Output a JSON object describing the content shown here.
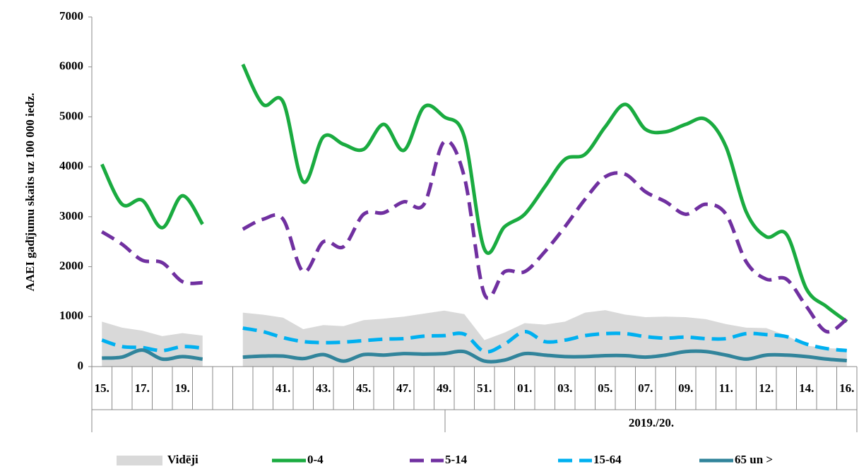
{
  "chart_data": {
    "type": "line",
    "y_label": "AAEI gadījumu skaits uz 100 000 iedz.",
    "categories": [
      "15.",
      null,
      "17.",
      null,
      "19.",
      null,
      null,
      null,
      null,
      "41.",
      null,
      "43.",
      null,
      "45.",
      null,
      "47.",
      null,
      "49.",
      null,
      "51.",
      null,
      "01.",
      null,
      "03.",
      null,
      "05.",
      null,
      "07.",
      null,
      "09.",
      null,
      "11.",
      null,
      "12.",
      null,
      "14.",
      null,
      "16."
    ],
    "x_group_label": "2019./20.",
    "ylim": [
      0,
      7000
    ],
    "yticks": [
      0,
      1000,
      2000,
      3000,
      4000,
      5000,
      6000,
      7000
    ],
    "series": [
      {
        "name": "Vidēji",
        "color": "#d9d9d9",
        "style": "area",
        "values": [
          900,
          780,
          720,
          610,
          670,
          620,
          null,
          1080,
          1040,
          980,
          750,
          830,
          810,
          930,
          960,
          1000,
          1060,
          1120,
          1050,
          530,
          680,
          870,
          840,
          900,
          1080,
          1130,
          1040,
          990,
          1000,
          990,
          950,
          850,
          780,
          770,
          620,
          420,
          370,
          350
        ]
      },
      {
        "name": "0-4",
        "color": "#1aab40",
        "style": "solid",
        "values": [
          4050,
          3250,
          3330,
          2780,
          3420,
          2850,
          null,
          6050,
          5250,
          5300,
          3700,
          4600,
          4450,
          4350,
          4850,
          4330,
          5200,
          5000,
          4600,
          2350,
          2800,
          3050,
          3600,
          4150,
          4250,
          4800,
          5250,
          4750,
          4700,
          4850,
          4950,
          4400,
          3100,
          2600,
          2650,
          1550,
          1200,
          900
        ]
      },
      {
        "name": "5-14",
        "color": "#7030a0",
        "style": "dashed",
        "values": [
          2700,
          2450,
          2130,
          2080,
          1700,
          1680,
          null,
          2750,
          2950,
          2950,
          1900,
          2500,
          2400,
          3050,
          3080,
          3300,
          3250,
          4500,
          3800,
          1450,
          1900,
          1900,
          2300,
          2800,
          3350,
          3800,
          3850,
          3500,
          3300,
          3050,
          3250,
          3050,
          2100,
          1750,
          1750,
          1200,
          700,
          950
        ]
      },
      {
        "name": "15-64",
        "color": "#00b0f0",
        "style": "dashed",
        "values": [
          530,
          400,
          380,
          320,
          400,
          370,
          null,
          770,
          700,
          580,
          500,
          480,
          490,
          520,
          550,
          560,
          610,
          620,
          650,
          300,
          450,
          700,
          500,
          530,
          620,
          660,
          660,
          600,
          570,
          590,
          560,
          560,
          660,
          640,
          600,
          450,
          360,
          320
        ]
      },
      {
        "name": "65 un >",
        "color": "#31849b",
        "style": "solid",
        "values": [
          170,
          190,
          330,
          150,
          200,
          150,
          null,
          190,
          210,
          210,
          160,
          240,
          110,
          240,
          230,
          260,
          250,
          260,
          300,
          110,
          130,
          260,
          230,
          200,
          200,
          220,
          220,
          190,
          230,
          300,
          300,
          230,
          150,
          230,
          230,
          200,
          150,
          120
        ]
      }
    ]
  }
}
